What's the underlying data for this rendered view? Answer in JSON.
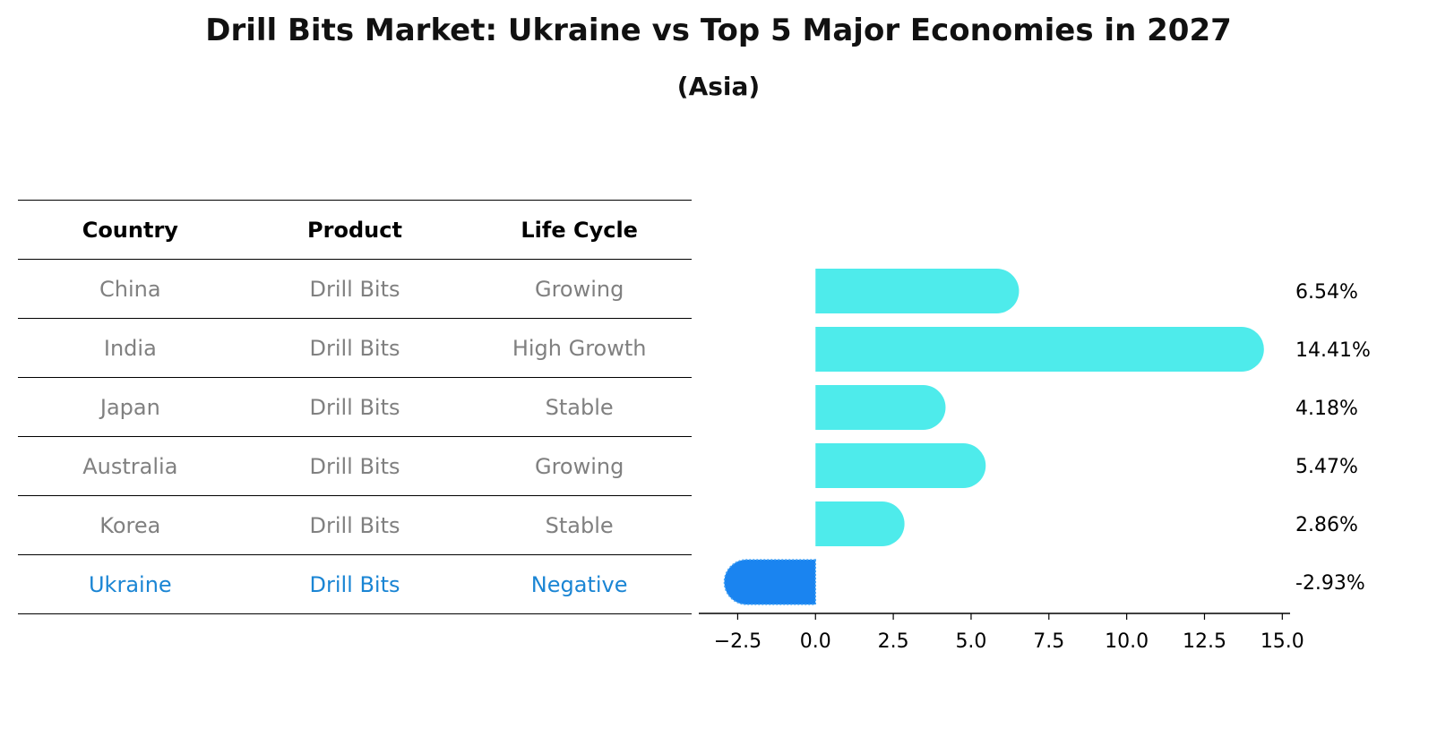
{
  "title": "Drill Bits Market: Ukraine vs Top 5 Major Economies in 2027",
  "subtitle": "(Asia)",
  "table": {
    "headers": [
      "Country",
      "Product",
      "Life Cycle"
    ],
    "rows": [
      [
        "China",
        "Drill Bits",
        "Growing"
      ],
      [
        "India",
        "Drill Bits",
        "High Growth"
      ],
      [
        "Japan",
        "Drill Bits",
        "Stable"
      ],
      [
        "Australia",
        "Drill Bits",
        "Growing"
      ],
      [
        "Korea",
        "Drill Bits",
        "Stable"
      ],
      [
        "Ukraine",
        "Drill Bits",
        "Negative"
      ]
    ]
  },
  "chart_data": {
    "type": "bar",
    "orientation": "horizontal",
    "categories": [
      "China",
      "India",
      "Japan",
      "Australia",
      "Korea",
      "Ukraine"
    ],
    "values": [
      6.54,
      14.41,
      4.18,
      5.47,
      2.86,
      -2.93
    ],
    "value_labels": [
      "6.54%",
      "14.41%",
      "4.18%",
      "5.47%",
      "2.86%",
      "-2.93%"
    ],
    "xlim": [
      -3.75,
      15.25
    ],
    "xticks": [
      -2.5,
      0.0,
      2.5,
      5.0,
      7.5,
      10.0,
      12.5,
      15.0
    ],
    "xtick_labels": [
      "−2.5",
      "0.0",
      "2.5",
      "5.0",
      "7.5",
      "10.0",
      "12.5",
      "15.0"
    ],
    "colors": {
      "positive": "#4eebeb",
      "negative": "#1a84f0"
    },
    "title": "Drill Bits Market: Ukraine vs Top 5 Major Economies in 2027",
    "subtitle": "(Asia)",
    "xlabel": "",
    "ylabel": ""
  }
}
